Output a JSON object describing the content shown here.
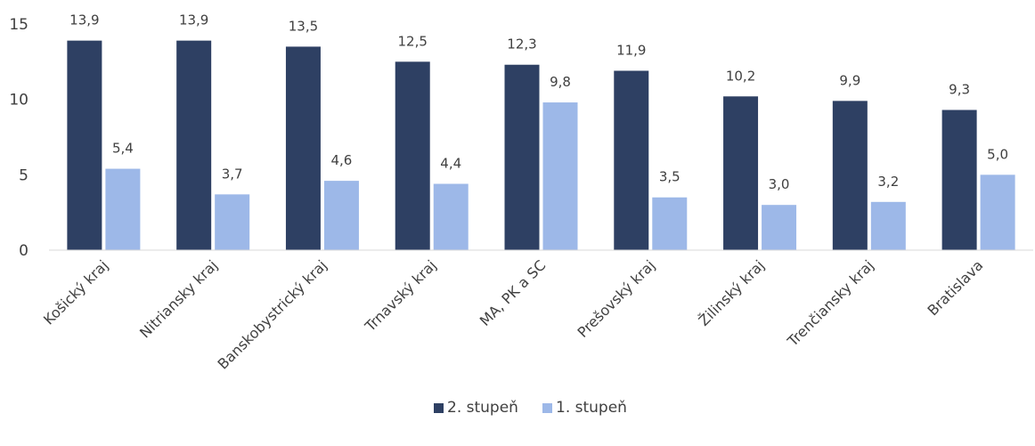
{
  "chart_data": {
    "type": "bar",
    "categories": [
      "Košický kraj",
      "Nitriansky kraj",
      "Banskobystrický kraj",
      "Trnavský kraj",
      "MA, PK a SC",
      "Prešovský kraj",
      "Žilinský kraj",
      "Trenčiansky kraj",
      "Bratislava"
    ],
    "series": [
      {
        "name": "2. stupeň",
        "values": [
          13.9,
          13.9,
          13.5,
          12.5,
          12.3,
          11.9,
          10.2,
          9.9,
          9.3
        ],
        "labels": [
          "13,9",
          "13,9",
          "13,5",
          "12,5",
          "12,3",
          "11,9",
          "10,2",
          "9,9",
          "9,3"
        ],
        "color": "#2e4063"
      },
      {
        "name": "1. stupeň",
        "values": [
          5.4,
          3.7,
          4.6,
          4.4,
          9.8,
          3.5,
          3.0,
          3.2,
          5.0
        ],
        "labels": [
          "5,4",
          "3,7",
          "4,6",
          "4,4",
          "9,8",
          "3,5",
          "3,0",
          "3,2",
          "5,0"
        ],
        "color": "#9db8e8"
      }
    ],
    "yticks": [
      0,
      5,
      10,
      15
    ],
    "ylim": [
      0,
      15
    ],
    "grid": false,
    "legend": "bottom-center"
  }
}
